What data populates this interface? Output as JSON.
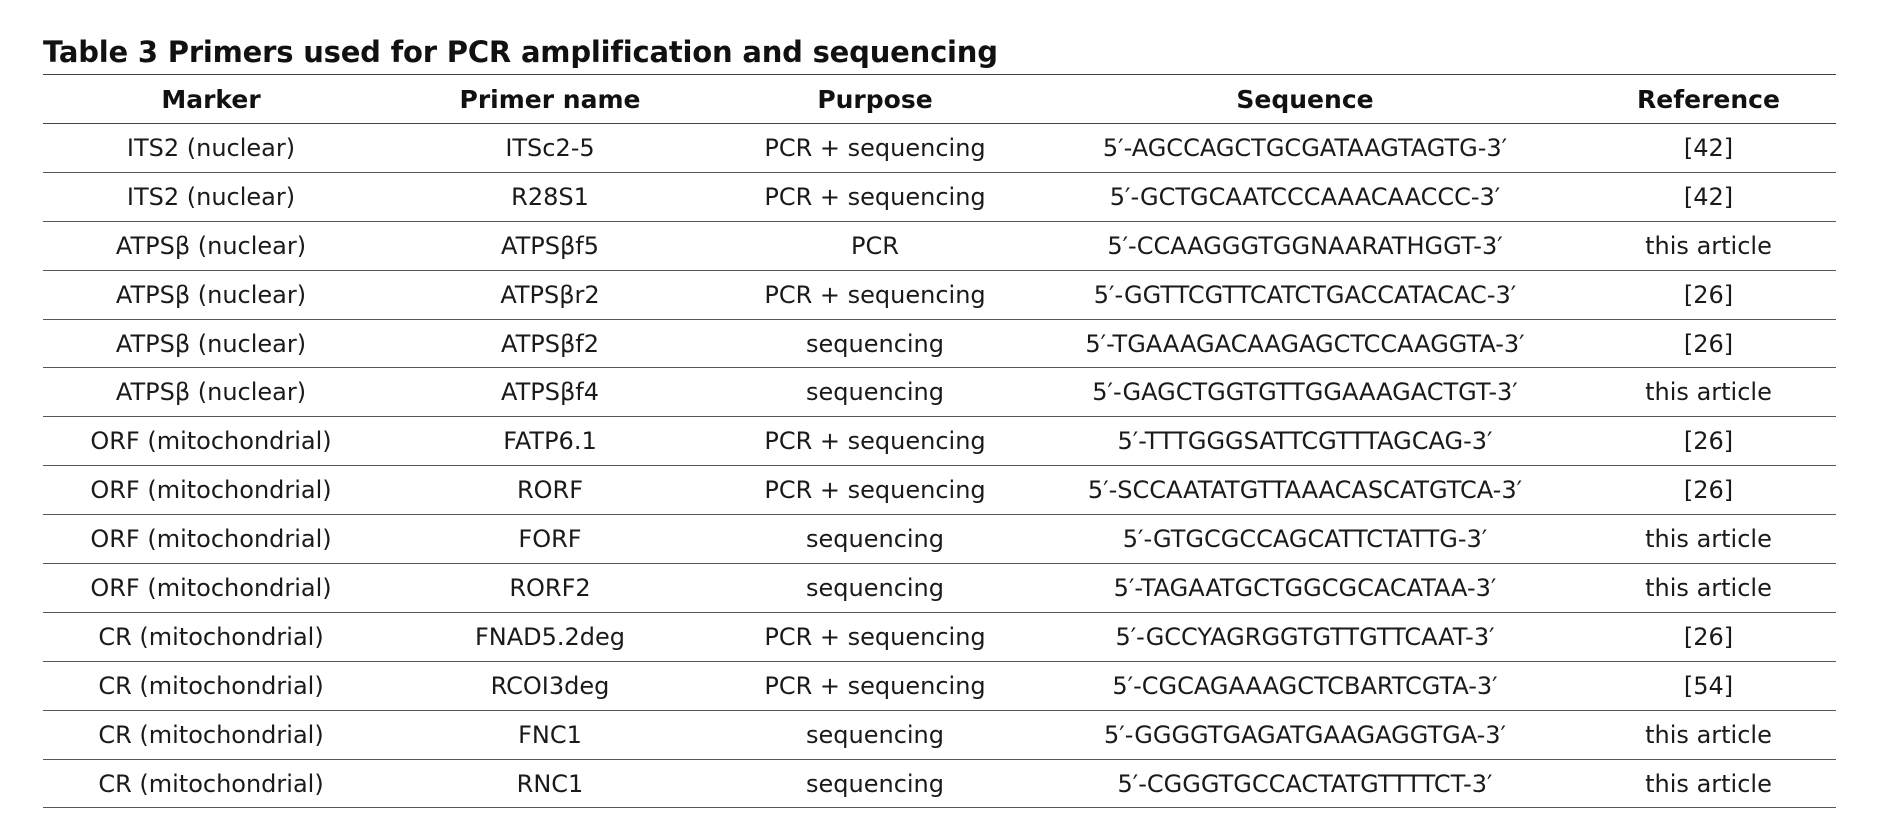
{
  "caption": {
    "label": "Table 3",
    "title": "Primers used for PCR amplification and sequencing"
  },
  "headers": {
    "marker": "Marker",
    "primer_name": "Primer name",
    "purpose": "Purpose",
    "sequence": "Sequence",
    "reference": "Reference"
  },
  "rows": [
    {
      "marker": "ITS2 (nuclear)",
      "primer_name": "ITSc2-5",
      "purpose": "PCR + sequencing",
      "sequence": "5′-AGCCAGCTGCGATAAGTAGTG-3′",
      "reference": "[42]"
    },
    {
      "marker": "ITS2 (nuclear)",
      "primer_name": "R28S1",
      "purpose": "PCR + sequencing",
      "sequence": "5′-GCTGCAATCCCAAACAACCC-3′",
      "reference": "[42]"
    },
    {
      "marker": "ATPSβ (nuclear)",
      "primer_name": "ATPSβf5",
      "purpose": "PCR",
      "sequence": "5′-CCAAGGGTGGNAARATHGGT-3′",
      "reference": "this article"
    },
    {
      "marker": "ATPSβ (nuclear)",
      "primer_name": "ATPSβr2",
      "purpose": "PCR + sequencing",
      "sequence": "5′-GGTTCGTTCATCTGACCATACAC-3′",
      "reference": "[26]"
    },
    {
      "marker": "ATPSβ (nuclear)",
      "primer_name": "ATPSβf2",
      "purpose": "sequencing",
      "sequence": "5′-TGAAAGACAAGAGCTCCAAGGTA-3′",
      "reference": "[26]"
    },
    {
      "marker": "ATPSβ (nuclear)",
      "primer_name": "ATPSβf4",
      "purpose": "sequencing",
      "sequence": "5′-GAGCTGGTGTTGGAAAGACTGT-3′",
      "reference": "this article"
    },
    {
      "marker": "ORF (mitochondrial)",
      "primer_name": "FATP6.1",
      "purpose": "PCR + sequencing",
      "sequence": "5′-TTTGGGSATTCGTTTAGCAG-3′",
      "reference": "[26]"
    },
    {
      "marker": "ORF (mitochondrial)",
      "primer_name": "RORF",
      "purpose": "PCR + sequencing",
      "sequence": "5′-SCCAATATGTTAAACASCATGTCA-3′",
      "reference": "[26]"
    },
    {
      "marker": "ORF (mitochondrial)",
      "primer_name": "FORF",
      "purpose": "sequencing",
      "sequence": "5′-GTGCGCCAGCATTCTATTG-3′",
      "reference": "this article"
    },
    {
      "marker": "ORF (mitochondrial)",
      "primer_name": "RORF2",
      "purpose": "sequencing",
      "sequence": "5′-TAGAATGCTGGCGCACATAA-3′",
      "reference": "this article"
    },
    {
      "marker": "CR (mitochondrial)",
      "primer_name": "FNAD5.2deg",
      "purpose": "PCR + sequencing",
      "sequence": "5′-GCCYAGRGGTGTTGTTCAAT-3′",
      "reference": "[26]"
    },
    {
      "marker": "CR (mitochondrial)",
      "primer_name": "RCOI3deg",
      "purpose": "PCR + sequencing",
      "sequence": "5′-CGCAGAAAGCTCBARTCGTA-3′",
      "reference": "[54]"
    },
    {
      "marker": "CR (mitochondrial)",
      "primer_name": "FNC1",
      "purpose": "sequencing",
      "sequence": "5′-GGGGTGAGATGAAGAGGTGA-3′",
      "reference": "this article"
    },
    {
      "marker": "CR (mitochondrial)",
      "primer_name": "RNC1",
      "purpose": "sequencing",
      "sequence": "5′-CGGGTGCCACTATGTTTTCT-3′",
      "reference": "this article"
    }
  ]
}
